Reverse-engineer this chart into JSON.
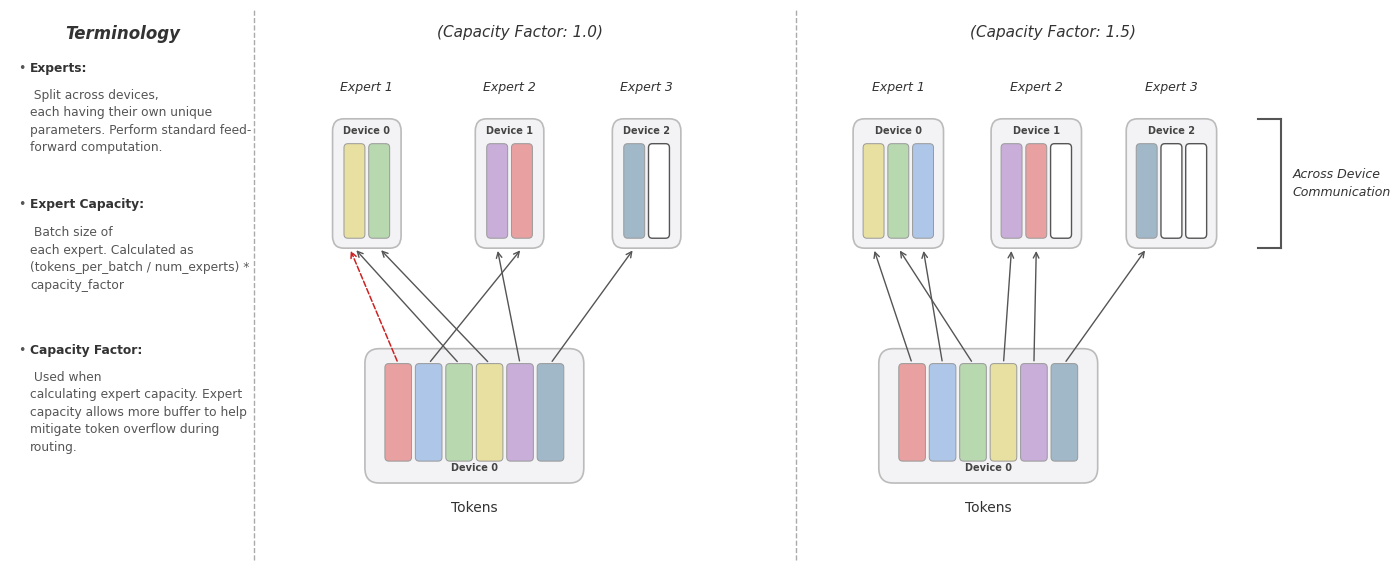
{
  "bg_color": "#ffffff",
  "terminology_title": "Terminology",
  "bullet1_bold": "Experts:",
  "bullet1_rest": " Split across devices,\neach having their own unique\nparameters. Perform standard feed-\nforward computation.",
  "bullet2_bold": "Expert Capacity:",
  "bullet2_rest": " Batch size of\neach expert. Calculated as\n(tokens_per_batch / num_experts) *\ncapacity_factor",
  "bullet3_bold": "Capacity Factor:",
  "bullet3_rest": " Used when\ncalculating expert capacity. Expert\ncapacity allows more buffer to help\nmitigate token overflow during\nrouting.",
  "panel1_title": "(Capacity Factor: 1.0)",
  "panel2_title": "(Capacity Factor: 1.5)",
  "expert_labels": [
    "Expert 1",
    "Expert 2",
    "Expert 3"
  ],
  "device_labels": [
    "Device 0",
    "Device 1",
    "Device 2"
  ],
  "tokens_label": "Tokens",
  "device0_label": "Device 0",
  "across_device_text": "Across Device\nCommunication",
  "token_colors_p1": [
    "#e8a0a0",
    "#aec6e8",
    "#b8d8b0",
    "#e8e0a0",
    "#c8aed8",
    "#a0b8c8"
  ],
  "token_colors_p2": [
    "#e8a0a0",
    "#aec6e8",
    "#b8d8b0",
    "#e8e0a0",
    "#c8aed8",
    "#a0b8c8"
  ],
  "expert1_cf10_colors": [
    "#e8e0a0",
    "#b8d8b0"
  ],
  "expert2_cf10_colors": [
    "#c8aed8",
    "#e8a0a0"
  ],
  "expert3_cf10_colors": [
    "#a0b8c8",
    "#ffffff"
  ],
  "expert1_cf15_colors": [
    "#e8e0a0",
    "#b8d8b0",
    "#aec6e8"
  ],
  "expert2_cf15_colors": [
    "#c8aed8",
    "#e8a0a0",
    "#ffffff"
  ],
  "expert3_cf15_colors": [
    "#a0b8c8",
    "#ffffff",
    "#ffffff"
  ],
  "arrow_color": "#555555",
  "dashed_arrow_color": "#cc2222",
  "divider_color": "#aaaaaa",
  "text_color_dark": "#333333",
  "text_color_mid": "#555555",
  "box_face": "#f3f3f5",
  "box_edge": "#bbbbbb"
}
